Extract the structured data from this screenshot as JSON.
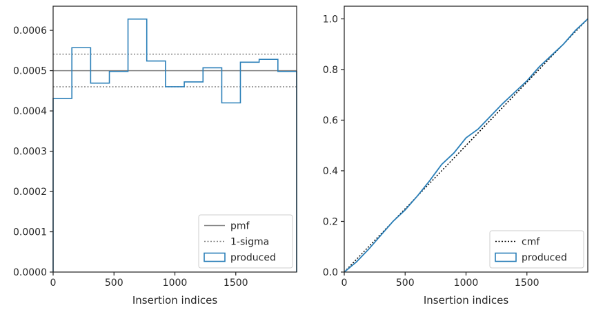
{
  "charts": [
    {
      "type": "histogram",
      "xlabel": "Insertion indices",
      "ylabel": "",
      "xlim": [
        0,
        2000
      ],
      "ylim": [
        0,
        0.00066
      ],
      "xticks": [
        0,
        500,
        1000,
        1500
      ],
      "xtick_labels": [
        "0",
        "500",
        "1000",
        "1500"
      ],
      "yticks": [
        0,
        0.0001,
        0.0002,
        0.0003,
        0.0004,
        0.0005,
        0.0006
      ],
      "ytick_labels": [
        "0.0000",
        "0.0001",
        "0.0002",
        "0.0003",
        "0.0004",
        "0.0005",
        "0.0006"
      ],
      "grid": false,
      "legend_position": "lower-right",
      "reference_lines": [
        {
          "name": "pmf",
          "y": 0.0005,
          "color": "#808080",
          "style": "solid"
        },
        {
          "name": "1-sigma",
          "y": 0.000541,
          "color": "#808080",
          "style": "dotted"
        },
        {
          "name": "1-sigma",
          "y": 0.00046,
          "color": "#808080",
          "style": "dotted"
        }
      ],
      "histogram": {
        "name": "produced",
        "color": "#2a7fb8",
        "bin_edges": [
          0,
          154,
          308,
          462,
          615,
          769,
          923,
          1077,
          1231,
          1385,
          1538,
          1692,
          1846,
          2000
        ],
        "values": [
          0.000431,
          0.000557,
          0.000469,
          0.000498,
          0.000628,
          0.000524,
          0.00046,
          0.000472,
          0.000507,
          0.00042,
          0.000521,
          0.000528,
          0.000498
        ]
      },
      "legend": [
        {
          "label": "pmf",
          "kind": "line",
          "color": "#808080",
          "style": "solid"
        },
        {
          "label": "1-sigma",
          "kind": "line",
          "color": "#808080",
          "style": "dotted"
        },
        {
          "label": "produced",
          "kind": "patch",
          "color": "#2a7fb8"
        }
      ]
    },
    {
      "type": "line",
      "xlabel": "Insertion indices",
      "ylabel": "",
      "xlim": [
        0,
        2000
      ],
      "ylim": [
        0,
        1.05
      ],
      "xticks": [
        0,
        500,
        1000,
        1500
      ],
      "xtick_labels": [
        "0",
        "500",
        "1000",
        "1500"
      ],
      "yticks": [
        0,
        0.2,
        0.4,
        0.6,
        0.8,
        1.0
      ],
      "ytick_labels": [
        "0.0",
        "0.2",
        "0.4",
        "0.6",
        "0.8",
        "1.0"
      ],
      "grid": false,
      "legend_position": "lower-right",
      "series": [
        {
          "name": "cmf",
          "color": "#000000",
          "style": "dotted",
          "x": [
            0,
            2000
          ],
          "y": [
            0,
            1.0
          ]
        },
        {
          "name": "produced",
          "color": "#2a7fb8",
          "style": "solid",
          "x": [
            0,
            100,
            200,
            300,
            400,
            500,
            600,
            700,
            800,
            900,
            1000,
            1100,
            1200,
            1300,
            1400,
            1500,
            1600,
            1700,
            1800,
            1900,
            2000
          ],
          "y": [
            0,
            0.04,
            0.09,
            0.145,
            0.2,
            0.245,
            0.3,
            0.36,
            0.425,
            0.47,
            0.53,
            0.565,
            0.615,
            0.665,
            0.71,
            0.755,
            0.81,
            0.855,
            0.9,
            0.955,
            1.0
          ]
        }
      ],
      "legend": [
        {
          "label": "cmf",
          "kind": "line",
          "color": "#000000",
          "style": "dotted"
        },
        {
          "label": "produced",
          "kind": "patch",
          "color": "#2a7fb8"
        }
      ]
    }
  ]
}
